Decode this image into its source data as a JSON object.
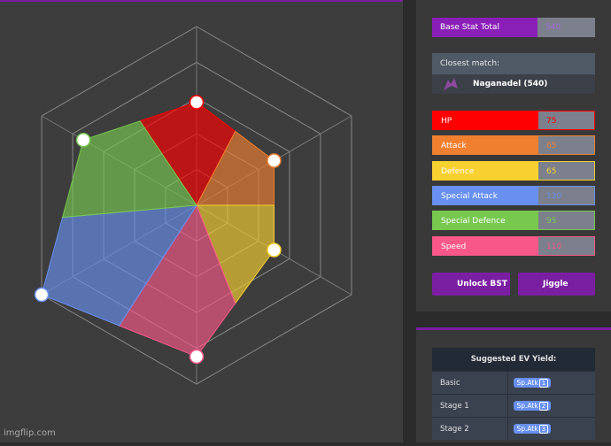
{
  "bst": {
    "label": "Base Stat Total",
    "value": 540
  },
  "closest_match": {
    "label": "Closest match:",
    "name": "Naganadel (540)"
  },
  "stats": [
    {
      "name": "HP",
      "value": 75,
      "color": "#ff0000"
    },
    {
      "name": "Attack",
      "value": 65,
      "color": "#f08030"
    },
    {
      "name": "Defence",
      "value": 65,
      "color": "#f8d030"
    },
    {
      "name": "Special Attack",
      "value": 130,
      "color": "#6890f0"
    },
    {
      "name": "Special Defence",
      "value": 95,
      "color": "#78c850"
    },
    {
      "name": "Speed",
      "value": 110,
      "color": "#f85888"
    }
  ],
  "buttons": [
    "Unlock BST",
    "Jiggle"
  ],
  "ev_yield": {
    "title": "Suggested EV Yield:",
    "rows": [
      [
        "Basic",
        "Sp.Atk",
        1
      ],
      [
        "Stage 1",
        "Sp.Atk",
        2
      ],
      [
        "Stage 2",
        "Sp.Atk",
        3
      ]
    ]
  },
  "watermark": "imgflip.com"
}
